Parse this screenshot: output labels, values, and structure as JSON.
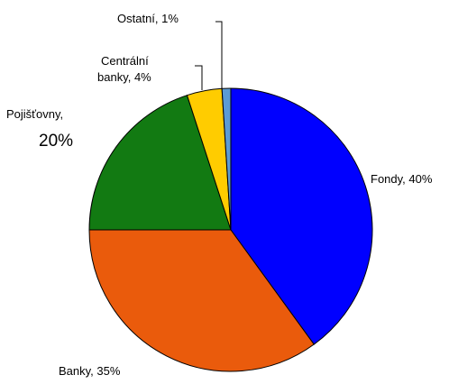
{
  "chart_data": {
    "type": "pie",
    "title": "",
    "slices": [
      {
        "label": "Fondy, 40%",
        "value": 40,
        "color": "#0000ff"
      },
      {
        "label": "Banky, 35%",
        "value": 35,
        "color": "#ea5b0c"
      },
      {
        "label_lines": [
          "Pojišťovny,",
          "20%"
        ],
        "value": 20,
        "color": "#127a12"
      },
      {
        "label_lines": [
          "Centrální",
          "banky, 4%"
        ],
        "value": 4,
        "color": "#ffcc00"
      },
      {
        "label": "Ostatní, 1%",
        "value": 1,
        "color": "#5b9bd5"
      }
    ],
    "start": "12 o'clock",
    "direction": "clockwise",
    "legend": "none",
    "outline_color": "#000000"
  }
}
